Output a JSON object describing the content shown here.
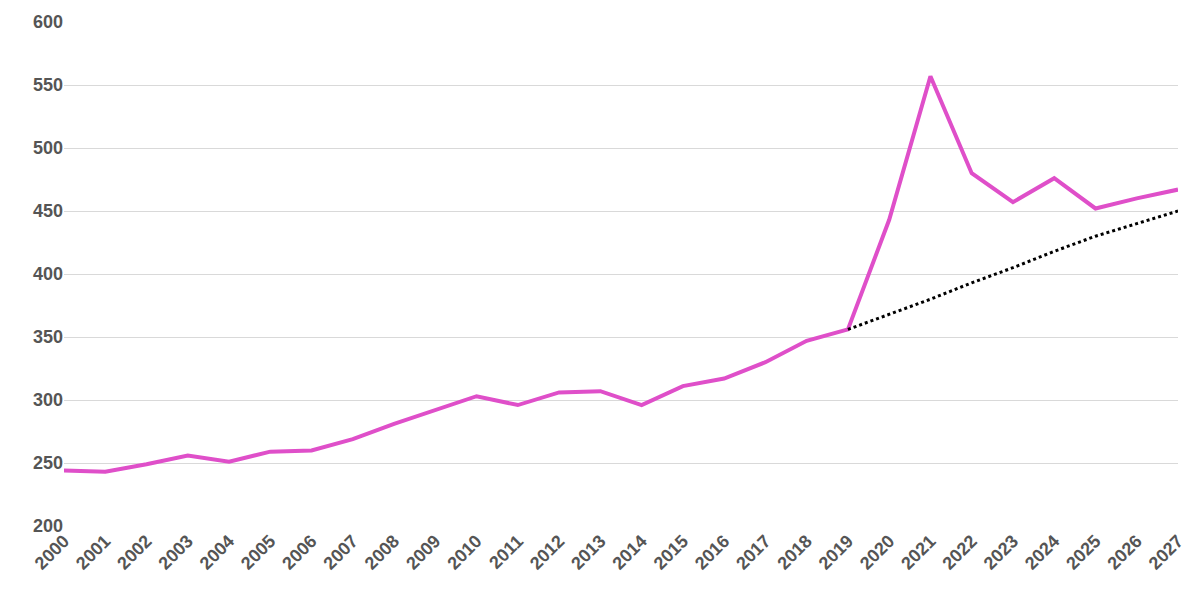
{
  "chart_data": {
    "type": "line",
    "categories": [
      "2000",
      "2001",
      "2002",
      "2003",
      "2004",
      "2005",
      "2006",
      "2007",
      "2008",
      "2009",
      "2010",
      "2011",
      "2012",
      "2013",
      "2014",
      "2015",
      "2016",
      "2017",
      "2018",
      "2019",
      "2020",
      "2021",
      "2022",
      "2023",
      "2024",
      "2025",
      "2026",
      "2027"
    ],
    "series": [
      {
        "color": "#df4fc9",
        "line_style": "solid",
        "values": [
          244,
          243,
          249,
          256,
          251,
          259,
          260,
          269,
          281,
          292,
          303,
          296,
          306,
          307,
          296,
          311,
          317,
          330,
          347,
          356,
          443,
          557,
          480,
          457,
          476,
          452,
          460,
          467
        ]
      },
      {
        "color": "#000000",
        "line_style": "dotted",
        "values": [
          null,
          null,
          null,
          null,
          null,
          null,
          null,
          null,
          null,
          null,
          null,
          null,
          null,
          null,
          null,
          null,
          null,
          null,
          null,
          356,
          368,
          380,
          393,
          405,
          418,
          430,
          440,
          450
        ]
      }
    ],
    "ylim": [
      200,
      600
    ],
    "yticks": [
      200,
      250,
      300,
      350,
      400,
      450,
      500,
      550,
      600
    ],
    "grid": true
  }
}
